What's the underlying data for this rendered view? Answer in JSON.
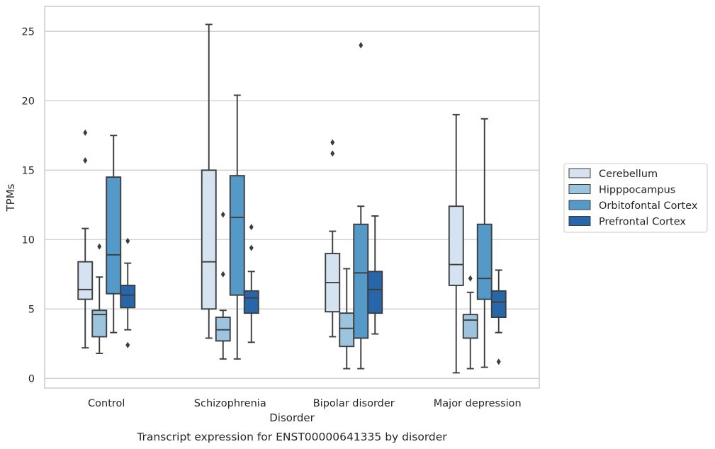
{
  "chart_data": {
    "type": "box",
    "title": "",
    "caption": "Transcript expression for ENST00000641335 by disorder",
    "xlabel": "Disorder",
    "ylabel": "TPMs",
    "ylim": [
      -0.7,
      26.8
    ],
    "yticks": [
      0,
      5,
      10,
      15,
      20,
      25
    ],
    "grid": "horizontal",
    "legend_position": "right",
    "categories": [
      "Control",
      "Schizophrenia",
      "Bipolar disorder",
      "Major depression"
    ],
    "series": [
      {
        "name": "Cerebellum",
        "color": "#d5e3f1",
        "boxes": [
          {
            "whislo": 2.2,
            "q1": 5.7,
            "med": 6.4,
            "q3": 8.4,
            "whishi": 10.8,
            "fliers": [
              15.7,
              17.7
            ]
          },
          {
            "whislo": 2.9,
            "q1": 5.0,
            "med": 8.4,
            "q3": 15.0,
            "whishi": 25.5,
            "fliers": []
          },
          {
            "whislo": 3.0,
            "q1": 4.8,
            "med": 6.9,
            "q3": 9.0,
            "whishi": 10.6,
            "fliers": [
              16.2,
              17.0
            ]
          },
          {
            "whislo": 0.4,
            "q1": 6.7,
            "med": 8.2,
            "q3": 12.4,
            "whishi": 19.0,
            "fliers": []
          }
        ]
      },
      {
        "name": "Hipppocampus",
        "color": "#9dc4df",
        "boxes": [
          {
            "whislo": 1.8,
            "q1": 3.0,
            "med": 4.6,
            "q3": 4.9,
            "whishi": 7.3,
            "fliers": [
              9.5
            ]
          },
          {
            "whislo": 1.4,
            "q1": 2.7,
            "med": 3.5,
            "q3": 4.4,
            "whishi": 4.9,
            "fliers": [
              7.5,
              11.8
            ]
          },
          {
            "whislo": 0.7,
            "q1": 2.3,
            "med": 3.6,
            "q3": 4.7,
            "whishi": 7.9,
            "fliers": []
          },
          {
            "whislo": 0.7,
            "q1": 2.9,
            "med": 4.2,
            "q3": 4.6,
            "whishi": 6.2,
            "fliers": [
              7.2
            ]
          }
        ]
      },
      {
        "name": "Orbitofontal Cortex",
        "color": "#5599c8",
        "boxes": [
          {
            "whislo": 3.3,
            "q1": 6.1,
            "med": 8.9,
            "q3": 14.5,
            "whishi": 17.5,
            "fliers": []
          },
          {
            "whislo": 1.4,
            "q1": 6.0,
            "med": 11.6,
            "q3": 14.6,
            "whishi": 20.4,
            "fliers": []
          },
          {
            "whislo": 0.7,
            "q1": 2.9,
            "med": 7.6,
            "q3": 11.1,
            "whishi": 12.4,
            "fliers": [
              24.0
            ]
          },
          {
            "whislo": 0.8,
            "q1": 5.7,
            "med": 7.2,
            "q3": 11.1,
            "whishi": 18.7,
            "fliers": []
          }
        ]
      },
      {
        "name": "Prefrontal Cortex",
        "color": "#2766a8",
        "boxes": [
          {
            "whislo": 3.5,
            "q1": 5.1,
            "med": 6.0,
            "q3": 6.7,
            "whishi": 8.3,
            "fliers": [
              2.4,
              9.9
            ]
          },
          {
            "whislo": 2.6,
            "q1": 4.7,
            "med": 5.8,
            "q3": 6.3,
            "whishi": 7.7,
            "fliers": [
              9.4,
              10.9
            ]
          },
          {
            "whislo": 3.2,
            "q1": 4.7,
            "med": 6.4,
            "q3": 7.7,
            "whishi": 11.7,
            "fliers": []
          },
          {
            "whislo": 3.3,
            "q1": 4.4,
            "med": 5.5,
            "q3": 6.3,
            "whishi": 7.8,
            "fliers": [
              1.2
            ]
          }
        ]
      }
    ]
  }
}
